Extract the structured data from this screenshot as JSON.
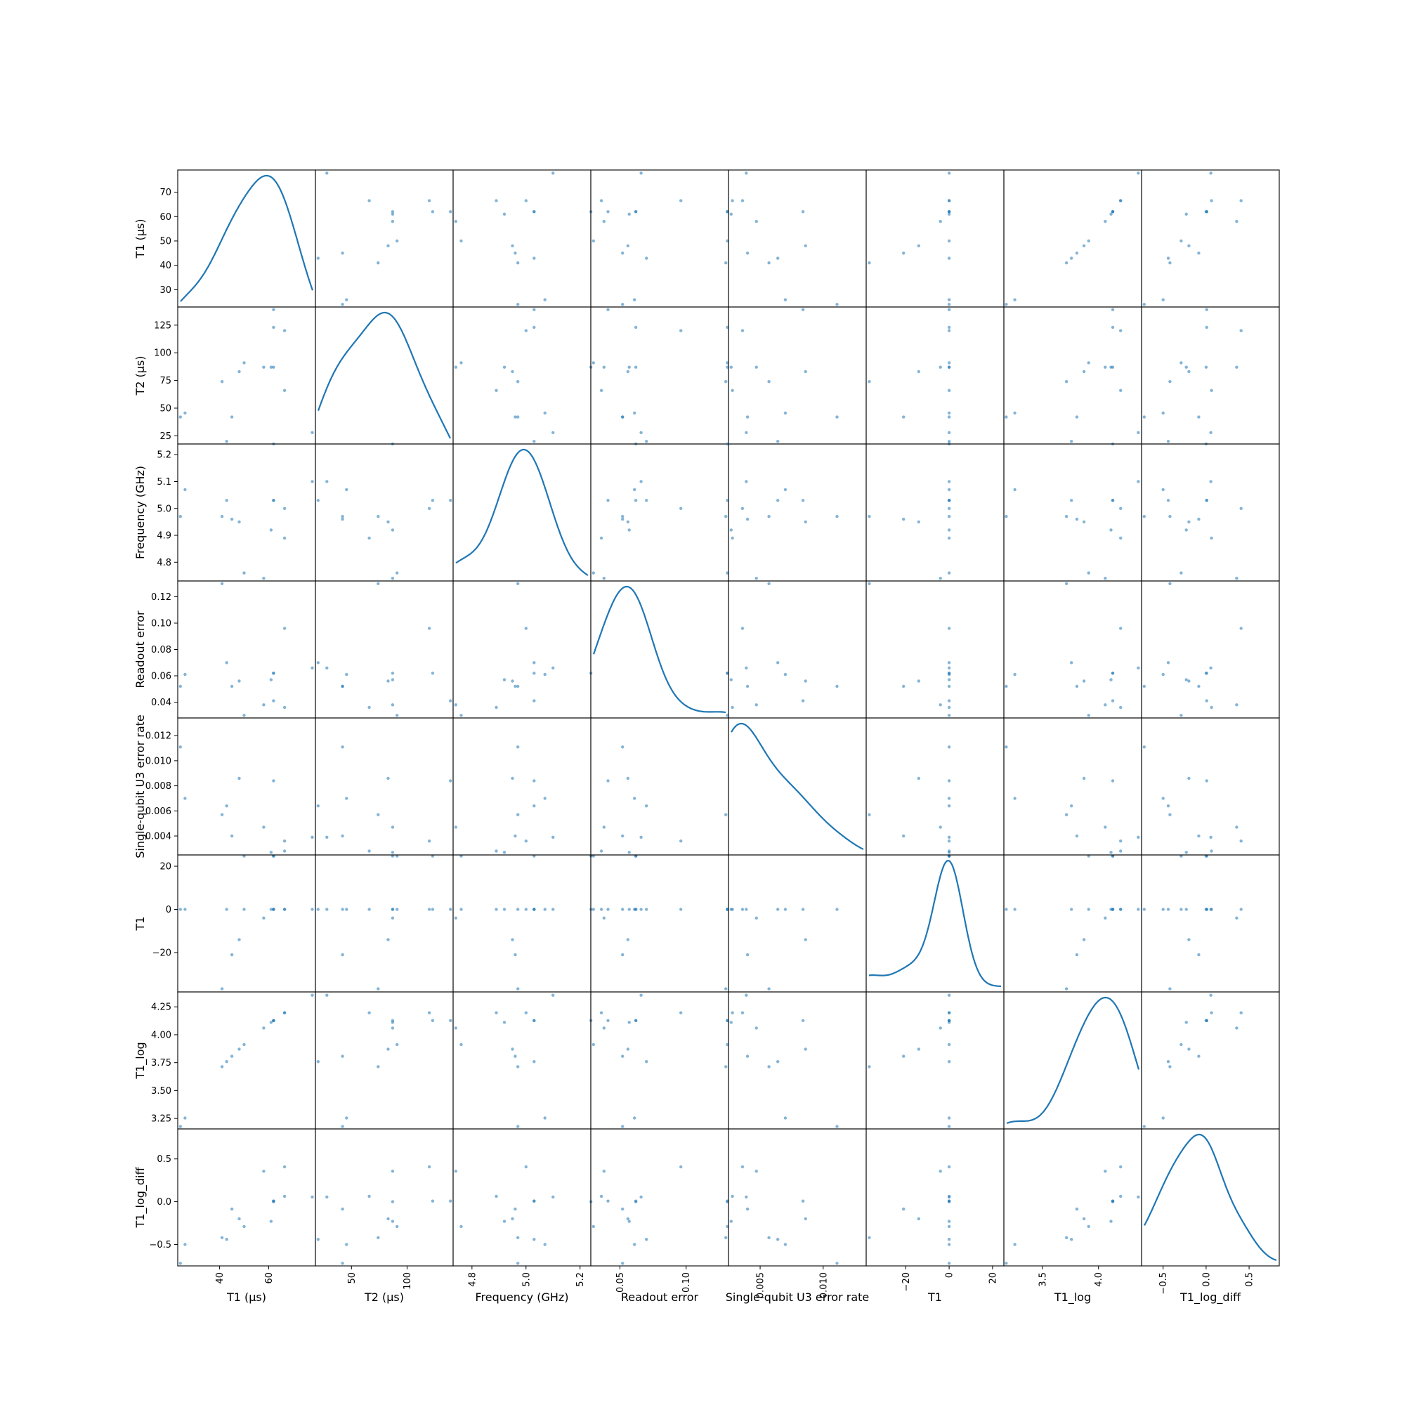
{
  "chart_data": {
    "type": "scatter_matrix",
    "diagonal": "kde",
    "point_color": "#1f77b4",
    "line_color": "#1f77b4",
    "variables": [
      {
        "name": "T1 (µs)",
        "ticks": [
          30,
          40,
          50,
          60,
          70
        ],
        "xticks": [
          40,
          60
        ],
        "range": [
          24.0,
          78.0
        ]
      },
      {
        "name": "T2 (µs)",
        "ticks": [
          25,
          50,
          75,
          100,
          125
        ],
        "xticks": [
          50,
          100
        ],
        "range": [
          20.0,
          139.0
        ]
      },
      {
        "name": "Frequency (GHz)",
        "ticks": [
          4.8,
          4.9,
          5.0,
          5.1,
          5.2
        ],
        "xticks": [
          4.8,
          5.0,
          5.2
        ],
        "range": [
          4.74,
          5.23
        ]
      },
      {
        "name": "Readout error",
        "ticks": [
          0.04,
          0.06,
          0.08,
          0.1,
          0.12
        ],
        "xticks": [
          0.05,
          0.1
        ],
        "range": [
          0.03,
          0.13
        ]
      },
      {
        "name": "Single-qubit U3 error rate",
        "ticks": [
          0.004,
          0.006,
          0.008,
          0.01,
          0.012
        ],
        "xticks": [
          0.005,
          0.01
        ],
        "range": [
          0.0027,
          0.0132
        ]
      },
      {
        "name": "T1",
        "ticks": [
          -20,
          0,
          20
        ],
        "xticks": [
          -20,
          0,
          20
        ],
        "range": [
          -37.0,
          24.0
        ]
      },
      {
        "name": "T1_log",
        "ticks": [
          3.25,
          3.5,
          3.75,
          4.0,
          4.25
        ],
        "xticks": [
          3.5,
          4.0
        ],
        "range": [
          3.18,
          4.36
        ]
      },
      {
        "name": "T1_log_diff",
        "ticks": [
          -0.5,
          0.0,
          0.5
        ],
        "xticks": [
          -0.5,
          0.0,
          0.5
        ],
        "range": [
          -0.72,
          0.82
        ]
      }
    ],
    "points": [
      [
        77.8,
        27.9,
        5.1,
        0.066,
        0.0039,
        0.0,
        4.354,
        0.055
      ],
      [
        25.9,
        45.6,
        5.07,
        0.061,
        0.007,
        0.0,
        3.254,
        -0.5
      ],
      [
        41.0,
        74.0,
        4.97,
        0.13,
        0.0057,
        -36.8,
        3.714,
        -0.421
      ],
      [
        45.0,
        42.0,
        4.96,
        0.052,
        0.004,
        -21.0,
        3.807,
        -0.086
      ],
      [
        48.0,
        83.0,
        4.95,
        0.056,
        0.0086,
        -14.0,
        3.871,
        -0.2
      ],
      [
        42.9,
        20.0,
        5.03,
        0.07,
        0.0064,
        0.0,
        3.759,
        -0.44
      ],
      [
        24.0,
        42.0,
        4.97,
        0.052,
        0.0111,
        0.0,
        3.178,
        -0.72
      ],
      [
        50.0,
        91.0,
        4.76,
        0.03,
        0.0024,
        0.0,
        3.912,
        -0.29
      ],
      [
        58.0,
        87.0,
        4.74,
        0.038,
        0.0047,
        -4.0,
        4.06,
        0.356
      ],
      [
        61.0,
        87.0,
        4.92,
        0.057,
        0.0027,
        0.0,
        4.111,
        -0.23
      ],
      [
        62.0,
        139.0,
        5.03,
        0.041,
        0.0084,
        0.0,
        4.127,
        0.007
      ],
      [
        62.0,
        123.0,
        5.03,
        0.062,
        0.0024,
        0.0,
        4.127,
        0.007
      ],
      [
        66.5,
        66.0,
        4.89,
        0.036,
        0.0028,
        0.0,
        4.197,
        0.063
      ],
      [
        66.5,
        120.0,
        5.0,
        0.096,
        0.0036,
        0.0,
        4.197,
        0.407
      ],
      [
        62.0,
        87.0,
        5.24,
        0.062,
        0.0024,
        0.0,
        4.127,
        0.0
      ]
    ]
  }
}
